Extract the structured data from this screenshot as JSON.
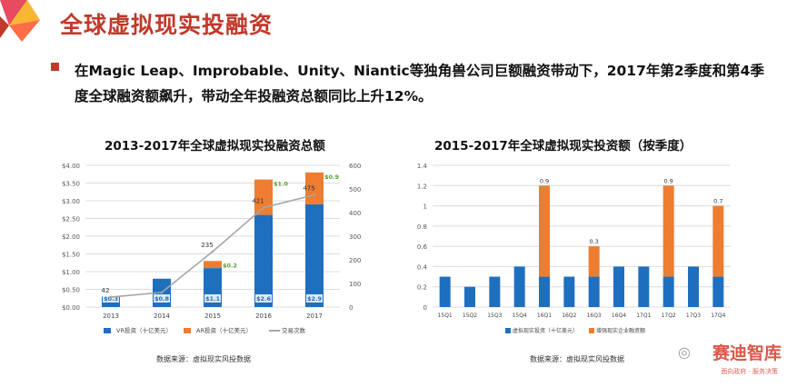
{
  "header": {
    "title": "全球虚拟现实投融资"
  },
  "bullet": {
    "text": "在Magic Leap、Improbable、Unity、Niantic等独角兽公司巨额融资带动下，2017年第2季度和第4季度全球融资额飙升，带动全年投融资总额同比上升12%。"
  },
  "colors": {
    "vr": "#1f6fbf",
    "ar": "#ed7d31",
    "line": "#a6a6a6",
    "accent": "#c0392b"
  },
  "chart_data": [
    {
      "type": "bar",
      "title": "2013-2017年全球虚拟现实投融资总额",
      "categories": [
        "2013",
        "2014",
        "2015",
        "2016",
        "2017"
      ],
      "series": [
        {
          "name": "VR投资（十亿美元）",
          "values": [
            0.3,
            0.8,
            1.1,
            2.6,
            2.9
          ],
          "labels": [
            "$0.3",
            "$0.8",
            "$1.1",
            "$2.6",
            "$2.9"
          ]
        },
        {
          "name": "AR投资（十亿美元）",
          "values": [
            0,
            0,
            0.2,
            1.0,
            0.9
          ],
          "labels": [
            "",
            "",
            "$0.2",
            "$1.0",
            "$0.9"
          ]
        },
        {
          "name": "交易次数",
          "type": "line",
          "values": [
            42,
            62,
            235,
            421,
            475
          ],
          "labels": [
            "42",
            "",
            "235",
            "421",
            "475"
          ]
        }
      ],
      "y_left_ticks": [
        "$0.00",
        "$0.50",
        "$1.00",
        "$1.50",
        "$2.00",
        "$2.50",
        "$3.00",
        "$3.50",
        "$4.00"
      ],
      "y_right_ticks": [
        "0",
        "100",
        "200",
        "300",
        "400",
        "500",
        "600"
      ],
      "ylim": [
        0,
        4
      ],
      "ylim_right": [
        0,
        600
      ],
      "source": "数据来源：虚拟现实风投数据"
    },
    {
      "type": "bar",
      "title": "2015-2017年全球虚拟现实投资额（按季度）",
      "categories": [
        "15Q1",
        "15Q2",
        "15Q3",
        "15Q4",
        "16Q1",
        "16Q2",
        "16Q3",
        "16Q4",
        "17Q1",
        "17Q2",
        "17Q3",
        "17Q4"
      ],
      "series": [
        {
          "name": "虚拟现实投资（十亿美元）",
          "values": [
            0.3,
            0.2,
            0.3,
            0.4,
            0.3,
            0.3,
            0.3,
            0.4,
            0.4,
            0.3,
            0.4,
            0.3
          ]
        },
        {
          "name": "增强现实企业融资额",
          "values": [
            0,
            0,
            0,
            0,
            0.9,
            0,
            0.3,
            0,
            0,
            0.9,
            0,
            0.7
          ]
        }
      ],
      "top_labels": [
        "",
        "",
        "",
        "",
        "0.9",
        "",
        "0.3",
        "",
        "",
        "0.9",
        "",
        "0.7"
      ],
      "y_ticks": [
        "0",
        "0.2",
        "0.4",
        "0.6",
        "0.8",
        "1",
        "1.2",
        "1.4"
      ],
      "ylim": [
        0,
        1.4
      ],
      "source": "数据来源：虚拟现实风投数据"
    }
  ],
  "watermark": {
    "main": "赛迪智库",
    "sub": "面向政府 · 服务决策"
  }
}
